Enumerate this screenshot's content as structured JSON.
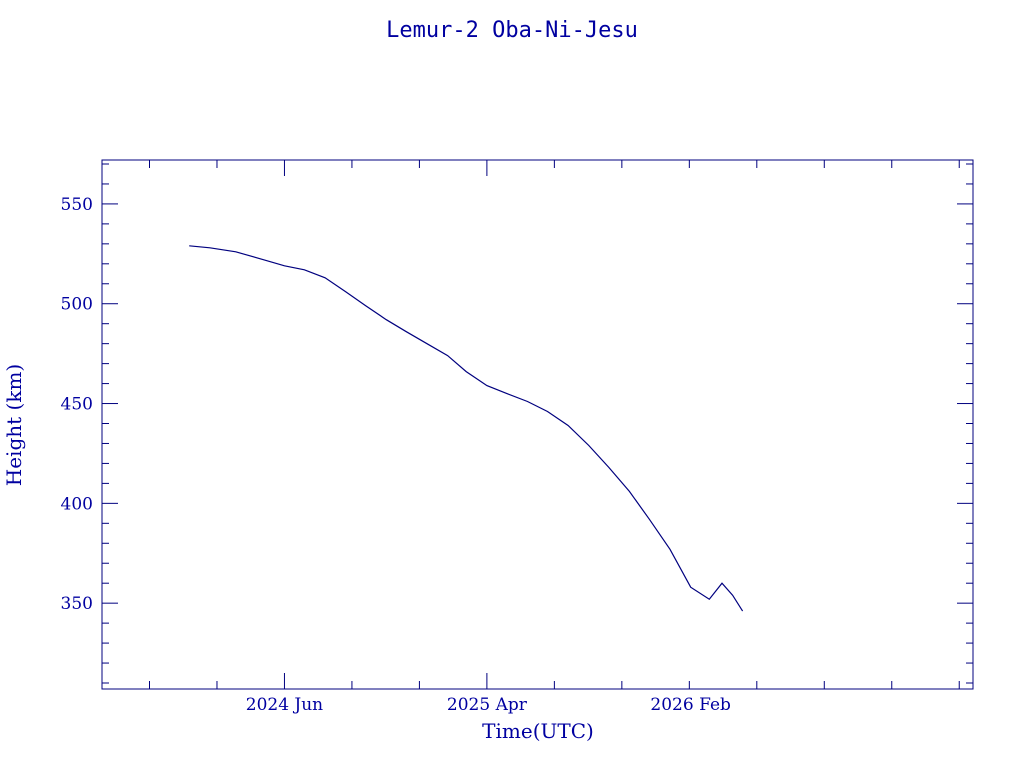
{
  "chart_data": {
    "type": "line",
    "title": "Lemur-2 Oba-Ni-Jesu",
    "xlabel": "Time(UTC)",
    "ylabel": "Height (km)",
    "xlim": [
      "2023-09-01",
      "2027-04-01"
    ],
    "ylim": [
      307,
      572
    ],
    "x_ticks": [
      {
        "date": "2024-06-01",
        "label": "2024 Jun"
      },
      {
        "date": "2025-04-01",
        "label": "2025 Apr"
      },
      {
        "date": "2026-02-01",
        "label": "2026 Feb"
      }
    ],
    "y_ticks": [
      350,
      400,
      450,
      500,
      550
    ],
    "grid": false,
    "color": "#00007f",
    "series": [
      {
        "x": [
          "2024-01-10",
          "2024-02-10",
          "2024-03-20",
          "2024-05-01",
          "2024-06-01",
          "2024-07-01",
          "2024-08-01",
          "2024-09-01",
          "2024-10-01",
          "2024-11-01",
          "2024-12-01",
          "2025-01-01",
          "2025-02-01",
          "2025-03-01",
          "2025-04-01",
          "2025-05-01",
          "2025-06-01",
          "2025-07-01",
          "2025-08-01",
          "2025-09-01",
          "2025-10-01",
          "2025-11-01",
          "2025-12-01",
          "2026-01-01",
          "2026-02-01",
          "2026-03-01",
          "2026-03-20",
          "2026-04-05",
          "2026-04-20"
        ],
        "y": [
          529,
          528,
          526,
          522,
          519,
          517,
          513,
          506,
          499,
          492,
          486,
          480,
          474,
          466,
          459,
          455,
          451,
          446,
          439,
          429,
          418,
          406,
          392,
          377,
          358,
          352,
          360,
          354,
          346
        ]
      }
    ]
  }
}
